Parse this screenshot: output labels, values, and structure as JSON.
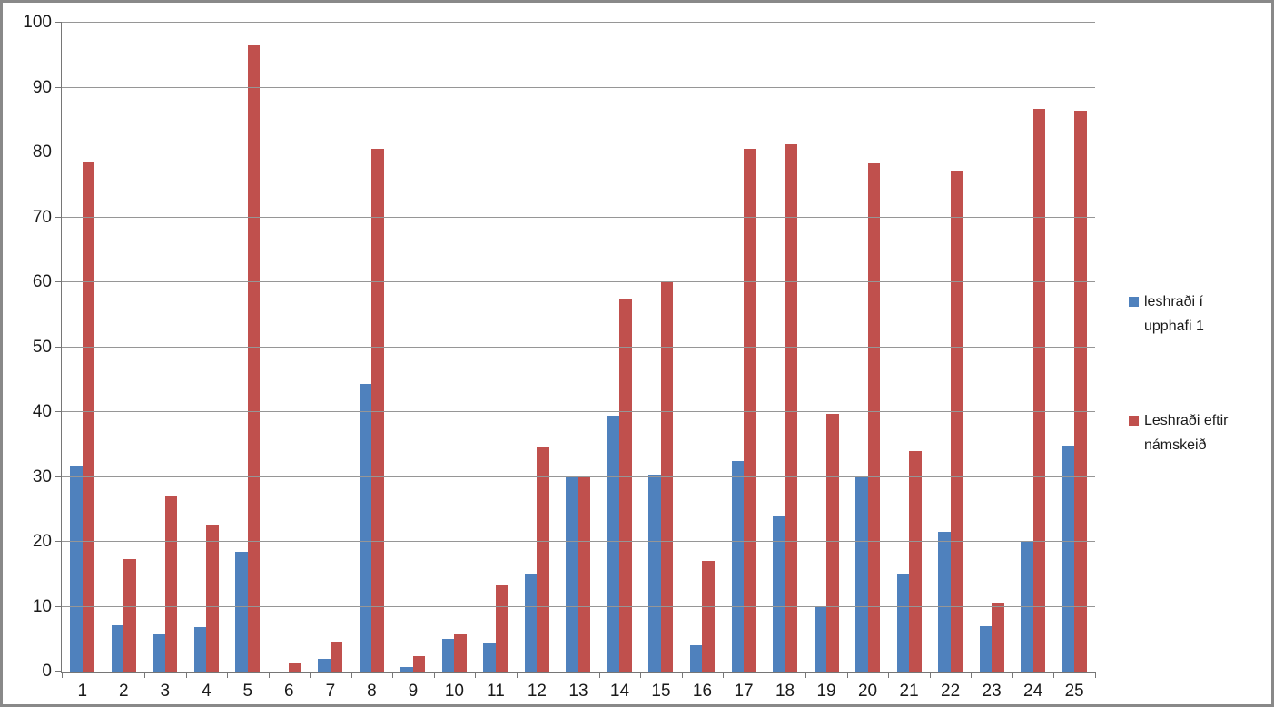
{
  "chart_data": {
    "type": "bar",
    "title": "",
    "xlabel": "",
    "ylabel": "",
    "grid": true,
    "legend_position": "right",
    "ylim": [
      0,
      100
    ],
    "ytick_step": 10,
    "categories": [
      "1",
      "2",
      "3",
      "4",
      "5",
      "6",
      "7",
      "8",
      "9",
      "10",
      "11",
      "12",
      "13",
      "14",
      "15",
      "16",
      "17",
      "18",
      "19",
      "20",
      "21",
      "22",
      "23",
      "24",
      "25"
    ],
    "series": [
      {
        "name": "leshraði í upphafi 1",
        "color": "#4F81BD",
        "values": [
          31.8,
          7.2,
          5.7,
          6.9,
          18.5,
          0,
          1.9,
          44.4,
          0.7,
          5.1,
          4.5,
          15.1,
          30.0,
          39.4,
          30.4,
          4.1,
          32.4,
          24.0,
          10.1,
          30.2,
          15.1,
          21.6,
          7.0,
          20.2,
          34.8
        ]
      },
      {
        "name": "Leshraði eftir námskeið",
        "color": "#C0504D",
        "values": [
          78.4,
          17.4,
          27.1,
          22.6,
          96.5,
          1.2,
          4.6,
          80.5,
          2.4,
          5.8,
          13.3,
          34.7,
          30.2,
          57.3,
          60.2,
          17.0,
          80.5,
          81.2,
          39.7,
          78.3,
          34.0,
          77.2,
          10.6,
          86.7,
          86.5
        ]
      }
    ]
  },
  "colors": {
    "background": "#FFFFFF",
    "frame_border": "#898989",
    "gridline": "#969696",
    "axis": "#767676",
    "text": "#1A1A1A",
    "series1": "#4F81BD",
    "series2": "#C0504D"
  }
}
